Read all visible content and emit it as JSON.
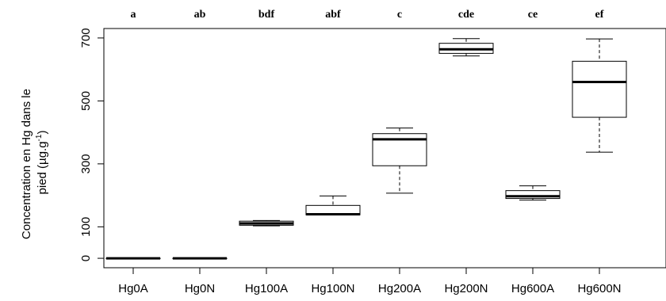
{
  "chart_data": {
    "type": "boxplot",
    "ylabel_line1": "Concentration en Hg dans le",
    "ylabel_line2_prefix": "pied (µg.g",
    "ylabel_sup": "-1",
    "ylabel_line2_suffix": ")",
    "ylim": [
      -30,
      730
    ],
    "yticks": [
      0,
      100,
      300,
      500,
      700
    ],
    "categories": [
      "Hg0A",
      "Hg0N",
      "Hg100A",
      "Hg100N",
      "Hg200A",
      "Hg200N",
      "Hg600A",
      "Hg600N"
    ],
    "letters": [
      "a",
      "ab",
      "bdf",
      "abf",
      "c",
      "cde",
      "ce",
      "ef"
    ],
    "boxes": [
      {
        "min": 0,
        "q1": 0,
        "median": 0,
        "q3": 0,
        "max": 0
      },
      {
        "min": 0,
        "q1": 0,
        "median": 0,
        "q3": 0,
        "max": 0
      },
      {
        "min": 103,
        "q1": 105,
        "median": 111,
        "q3": 118,
        "max": 120
      },
      {
        "min": 138,
        "q1": 138,
        "median": 140,
        "q3": 168,
        "max": 198
      },
      {
        "min": 207,
        "q1": 294,
        "median": 378,
        "q3": 396,
        "max": 414
      },
      {
        "min": 643,
        "q1": 651,
        "median": 664,
        "q3": 683,
        "max": 698
      },
      {
        "min": 185,
        "q1": 190,
        "median": 197,
        "q3": 215,
        "max": 230
      },
      {
        "min": 337,
        "q1": 448,
        "median": 560,
        "q3": 626,
        "max": 697
      }
    ]
  }
}
